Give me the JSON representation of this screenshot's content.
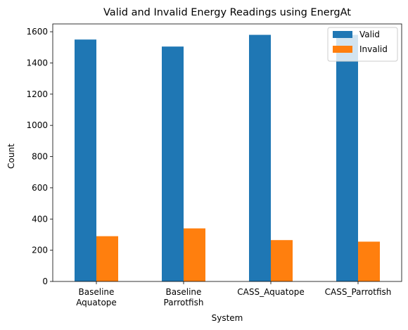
{
  "chart_data": {
    "type": "bar",
    "title": "Valid and Invalid Energy Readings using EnergAt",
    "xlabel": "System",
    "ylabel": "Count",
    "categories": [
      [
        "Baseline",
        "Aquatope"
      ],
      [
        "Baseline",
        "Parrotfish"
      ],
      [
        "CASS_Aquatope"
      ],
      [
        "CASS_Parrotfish"
      ]
    ],
    "series": [
      {
        "name": "Valid",
        "color": "#1f77b4",
        "values": [
          1550,
          1505,
          1580,
          1580
        ]
      },
      {
        "name": "Invalid",
        "color": "#ff7f0e",
        "values": [
          290,
          340,
          265,
          255
        ]
      }
    ],
    "ylim": [
      0,
      1650
    ],
    "yticks": [
      0,
      200,
      400,
      600,
      800,
      1000,
      1200,
      1400,
      1600
    ],
    "grid": false,
    "legend_position": "top-right"
  }
}
